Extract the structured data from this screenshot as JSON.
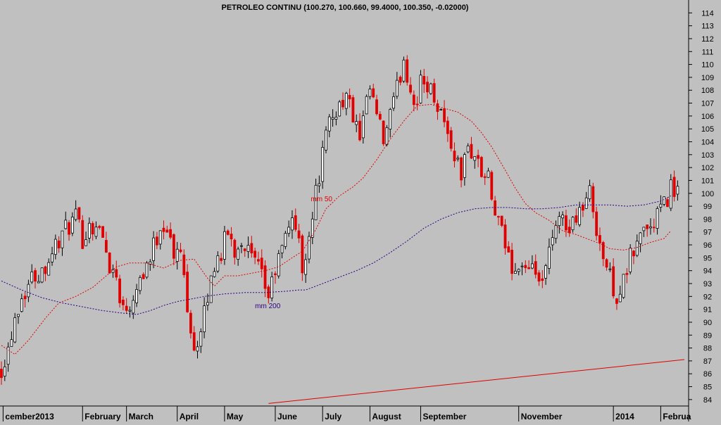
{
  "chart_data": {
    "type": "candlestick",
    "title": "PETROLEO CONTINU (100.270, 100.660, 99.4000, 100.350, -0.02000)",
    "xlabel": "",
    "ylabel": "",
    "ylim": [
      83.5,
      115
    ],
    "y_ticks": [
      84,
      85,
      86,
      87,
      88,
      89,
      90,
      91,
      92,
      93,
      94,
      95,
      96,
      97,
      98,
      99,
      100,
      101,
      102,
      103,
      104,
      105,
      106,
      107,
      108,
      109,
      110,
      111,
      112,
      113,
      114
    ],
    "x_labels": [
      {
        "label": "cember2013",
        "period": 0.5
      },
      {
        "label": "February",
        "period": 24
      },
      {
        "label": "March",
        "period": 37
      },
      {
        "label": "April",
        "period": 52
      },
      {
        "label": "May",
        "period": 66
      },
      {
        "label": "June",
        "period": 81
      },
      {
        "label": "July",
        "period": 95
      },
      {
        "label": "August",
        "period": 109
      },
      {
        "label": "September",
        "period": 124
      },
      {
        "label": "November",
        "period": 153
      },
      {
        "label": "2014",
        "period": 181
      },
      {
        "label": "Februa",
        "period": 195
      }
    ],
    "total_periods": 202,
    "price_path": [
      [
        0,
        86.5
      ],
      [
        2,
        88.0
      ],
      [
        4,
        90.5
      ],
      [
        6,
        92.0
      ],
      [
        9,
        93.5
      ],
      [
        12,
        94.0
      ],
      [
        16,
        96.0
      ],
      [
        20,
        97.5
      ],
      [
        22,
        98.0
      ],
      [
        24,
        96.5
      ],
      [
        26,
        97.5
      ],
      [
        28,
        97.5
      ],
      [
        30,
        96.5
      ],
      [
        32,
        94.5
      ],
      [
        34,
        93.5
      ],
      [
        36,
        91.0
      ],
      [
        38,
        91.5
      ],
      [
        40,
        93.0
      ],
      [
        44,
        95.0
      ],
      [
        47,
        97.5
      ],
      [
        49,
        97.5
      ],
      [
        51,
        95.0
      ],
      [
        53,
        95.5
      ],
      [
        55,
        91.5
      ],
      [
        57,
        88.0
      ],
      [
        59,
        89.0
      ],
      [
        61,
        92.0
      ],
      [
        63,
        94.5
      ],
      [
        65,
        95.5
      ],
      [
        67,
        97.0
      ],
      [
        69,
        95.5
      ],
      [
        71,
        96.5
      ],
      [
        74,
        95.0
      ],
      [
        77,
        93.5
      ],
      [
        79,
        92.0
      ],
      [
        81,
        94.0
      ],
      [
        84,
        96.5
      ],
      [
        86,
        98.5
      ],
      [
        88,
        96.0
      ],
      [
        89,
        94.0
      ],
      [
        91,
        97.0
      ],
      [
        93,
        100.0
      ],
      [
        95,
        103.0
      ],
      [
        97,
        105.5
      ],
      [
        100,
        107.0
      ],
      [
        102,
        107.5
      ],
      [
        104,
        106.0
      ],
      [
        106,
        104.0
      ],
      [
        107,
        105.5
      ],
      [
        109,
        108.0
      ],
      [
        111,
        106.0
      ],
      [
        113,
        104.0
      ],
      [
        115,
        106.0
      ],
      [
        117,
        108.0
      ],
      [
        119,
        110.5
      ],
      [
        121,
        108.0
      ],
      [
        123,
        107.0
      ],
      [
        124,
        108.5
      ],
      [
        126,
        108.5
      ],
      [
        128,
        107.5
      ],
      [
        130,
        106.5
      ],
      [
        132,
        104.5
      ],
      [
        134,
        103.0
      ],
      [
        136,
        101.5
      ],
      [
        138,
        103.5
      ],
      [
        140,
        103.0
      ],
      [
        142,
        101.5
      ],
      [
        144,
        101.0
      ],
      [
        145,
        99.5
      ],
      [
        147,
        97.5
      ],
      [
        149,
        96.0
      ],
      [
        150,
        95.0
      ],
      [
        152,
        94.0
      ],
      [
        154,
        94.5
      ],
      [
        156,
        93.5
      ],
      [
        158,
        94.0
      ],
      [
        160,
        92.5
      ],
      [
        162,
        95.5
      ],
      [
        164,
        97.0
      ],
      [
        166,
        98.5
      ],
      [
        168,
        97.0
      ],
      [
        170,
        98.5
      ],
      [
        172,
        99.0
      ],
      [
        174,
        100.0
      ],
      [
        176,
        97.5
      ],
      [
        178,
        95.0
      ],
      [
        180,
        93.5
      ],
      [
        182,
        92.0
      ],
      [
        184,
        93.0
      ],
      [
        186,
        95.0
      ],
      [
        188,
        96.0
      ],
      [
        190,
        97.5
      ],
      [
        192,
        97.0
      ],
      [
        194,
        98.5
      ],
      [
        196,
        99.0
      ],
      [
        198,
        100.5
      ],
      [
        200,
        100.3
      ]
    ],
    "series": [
      {
        "name": "mm 50",
        "style": "dashed",
        "color": "#e00000",
        "points": [
          [
            0,
            88.2
          ],
          [
            4,
            87.5
          ],
          [
            8,
            88.6
          ],
          [
            13,
            90.3
          ],
          [
            17,
            91.5
          ],
          [
            22,
            92.0
          ],
          [
            27,
            92.7
          ],
          [
            31,
            93.6
          ],
          [
            34,
            94.3
          ],
          [
            38,
            94.6
          ],
          [
            43,
            94.6
          ],
          [
            48,
            94.2
          ],
          [
            53,
            94.8
          ],
          [
            57,
            94.9
          ],
          [
            61,
            93.4
          ],
          [
            63,
            92.8
          ],
          [
            66,
            93.6
          ],
          [
            70,
            93.6
          ],
          [
            74,
            93.8
          ],
          [
            78,
            94.0
          ],
          [
            82,
            94.3
          ],
          [
            86,
            95.0
          ],
          [
            89,
            95.5
          ],
          [
            93,
            97.2
          ],
          [
            96,
            98.8
          ],
          [
            100,
            99.8
          ],
          [
            104,
            100.5
          ],
          [
            107,
            101.2
          ],
          [
            111,
            102.6
          ],
          [
            115,
            104.2
          ],
          [
            119,
            105.6
          ],
          [
            123,
            106.8
          ],
          [
            127,
            106.9
          ],
          [
            131,
            106.6
          ],
          [
            135,
            106.3
          ],
          [
            139,
            105.6
          ],
          [
            142,
            104.7
          ],
          [
            145,
            103.6
          ],
          [
            149,
            101.8
          ],
          [
            152,
            100.4
          ],
          [
            155,
            99.2
          ],
          [
            158,
            98.5
          ],
          [
            162,
            97.9
          ],
          [
            166,
            97.1
          ],
          [
            170,
            96.8
          ],
          [
            174,
            96.4
          ],
          [
            177,
            96.1
          ],
          [
            180,
            95.7
          ],
          [
            184,
            95.6
          ],
          [
            188,
            95.8
          ],
          [
            192,
            96.2
          ],
          [
            196,
            96.5
          ],
          [
            198,
            97.1
          ]
        ]
      },
      {
        "name": "mm 200",
        "style": "dashed",
        "color": "#2a0080",
        "points": [
          [
            0,
            93.2
          ],
          [
            6,
            92.5
          ],
          [
            12,
            91.9
          ],
          [
            18,
            91.5
          ],
          [
            24,
            91.2
          ],
          [
            30,
            90.9
          ],
          [
            36,
            90.7
          ],
          [
            40,
            90.6
          ],
          [
            44,
            90.9
          ],
          [
            48,
            91.3
          ],
          [
            52,
            91.6
          ],
          [
            56,
            91.8
          ],
          [
            60,
            92.0
          ],
          [
            66,
            92.2
          ],
          [
            72,
            92.3
          ],
          [
            78,
            92.3
          ],
          [
            84,
            92.4
          ],
          [
            88,
            92.5
          ],
          [
            90,
            92.5
          ],
          [
            95,
            93.0
          ],
          [
            100,
            93.5
          ],
          [
            105,
            94.0
          ],
          [
            110,
            94.6
          ],
          [
            115,
            95.4
          ],
          [
            120,
            96.3
          ],
          [
            125,
            97.3
          ],
          [
            130,
            98.0
          ],
          [
            135,
            98.5
          ],
          [
            140,
            98.8
          ],
          [
            145,
            98.9
          ],
          [
            150,
            98.9
          ],
          [
            155,
            98.8
          ],
          [
            160,
            98.8
          ],
          [
            165,
            98.9
          ],
          [
            170,
            99.1
          ],
          [
            175,
            99.1
          ],
          [
            180,
            99.1
          ],
          [
            185,
            99.0
          ],
          [
            190,
            99.1
          ],
          [
            195,
            99.4
          ],
          [
            198,
            99.8
          ]
        ]
      },
      {
        "name": "trendline",
        "style": "solid",
        "color": "#e00000",
        "points": [
          [
            79,
            83.7
          ],
          [
            202,
            87.1
          ]
        ]
      }
    ],
    "annotations": [
      {
        "text": "mm 50",
        "period": 91.5,
        "value": 99.6,
        "color": "#e00000"
      },
      {
        "text": "mm 200",
        "period": 75,
        "value": 91.3,
        "color": "#2a0080"
      }
    ]
  }
}
